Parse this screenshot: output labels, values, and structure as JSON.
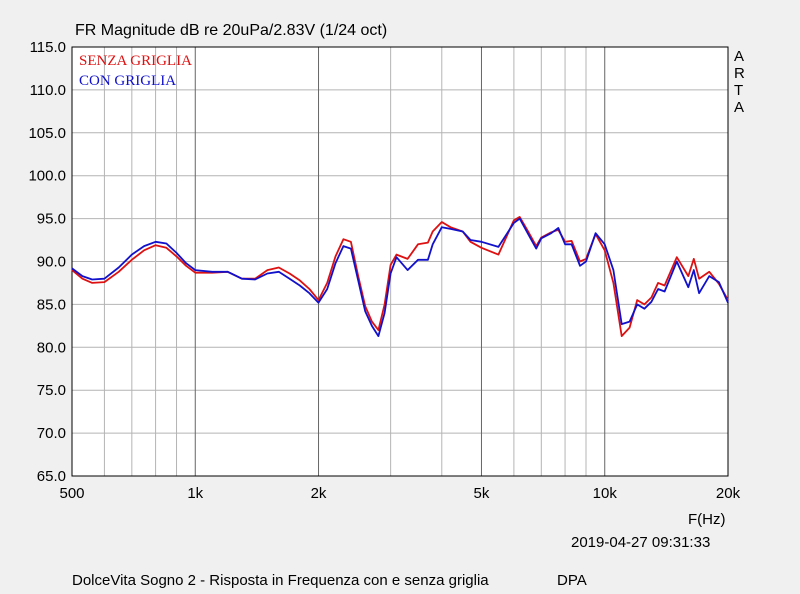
{
  "chart_data": {
    "type": "line",
    "title": "FR Magnitude dB re 20uPa/2.83V (1/24 oct)",
    "xlabel": "F(Hz)",
    "ylabel": "",
    "xscale": "log",
    "xlim": [
      500,
      20000
    ],
    "ylim": [
      65,
      115
    ],
    "y_ticks": [
      115,
      110,
      105,
      100,
      95,
      90,
      85,
      80,
      75,
      70,
      65
    ],
    "y_tick_labels": [
      "115.0",
      "110.0",
      "105.0",
      "100.0",
      "95.0",
      "90.0",
      "85.0",
      "80.0",
      "75.0",
      "70.0",
      "65.0"
    ],
    "x_ticks": [
      500,
      1000,
      2000,
      5000,
      10000,
      20000
    ],
    "x_tick_labels": [
      "500",
      "1k",
      "2k",
      "5k",
      "10k",
      "20k"
    ],
    "x_minor_grid": [
      600,
      700,
      800,
      900,
      3000,
      4000,
      6000,
      7000,
      8000,
      9000
    ],
    "grid": true,
    "legend_position": "top-left",
    "series": [
      {
        "name": "SENZA GRIGLIA",
        "color": "#dd1111",
        "points": [
          [
            500,
            89.0
          ],
          [
            530,
            88.0
          ],
          [
            560,
            87.5
          ],
          [
            600,
            87.6
          ],
          [
            650,
            88.8
          ],
          [
            700,
            90.2
          ],
          [
            750,
            91.3
          ],
          [
            800,
            91.9
          ],
          [
            850,
            91.6
          ],
          [
            900,
            90.6
          ],
          [
            950,
            89.5
          ],
          [
            1000,
            88.7
          ],
          [
            1100,
            88.7
          ],
          [
            1200,
            88.8
          ],
          [
            1300,
            88.0
          ],
          [
            1400,
            88.0
          ],
          [
            1500,
            89.0
          ],
          [
            1600,
            89.3
          ],
          [
            1700,
            88.6
          ],
          [
            1800,
            87.8
          ],
          [
            1900,
            86.8
          ],
          [
            2000,
            85.5
          ],
          [
            2100,
            87.5
          ],
          [
            2200,
            90.6
          ],
          [
            2300,
            92.6
          ],
          [
            2400,
            92.3
          ],
          [
            2500,
            88.3
          ],
          [
            2600,
            84.8
          ],
          [
            2700,
            83.0
          ],
          [
            2800,
            82.0
          ],
          [
            2900,
            85.0
          ],
          [
            3000,
            89.6
          ],
          [
            3100,
            90.8
          ],
          [
            3300,
            90.3
          ],
          [
            3500,
            92.0
          ],
          [
            3700,
            92.2
          ],
          [
            3800,
            93.5
          ],
          [
            4000,
            94.6
          ],
          [
            4200,
            94.0
          ],
          [
            4500,
            93.5
          ],
          [
            4700,
            92.3
          ],
          [
            5000,
            91.6
          ],
          [
            5500,
            90.8
          ],
          [
            6000,
            94.8
          ],
          [
            6200,
            95.2
          ],
          [
            6500,
            93.5
          ],
          [
            6800,
            91.8
          ],
          [
            7000,
            92.8
          ],
          [
            7400,
            93.4
          ],
          [
            7700,
            93.7
          ],
          [
            8000,
            92.3
          ],
          [
            8300,
            92.4
          ],
          [
            8700,
            90.0
          ],
          [
            9000,
            90.3
          ],
          [
            9500,
            93.2
          ],
          [
            10000,
            91.3
          ],
          [
            10500,
            87.5
          ],
          [
            11000,
            81.3
          ],
          [
            11500,
            82.3
          ],
          [
            12000,
            85.5
          ],
          [
            12500,
            85.0
          ],
          [
            13000,
            85.8
          ],
          [
            13500,
            87.5
          ],
          [
            14000,
            87.2
          ],
          [
            15000,
            90.5
          ],
          [
            16000,
            88.3
          ],
          [
            16500,
            90.3
          ],
          [
            17000,
            88.0
          ],
          [
            18000,
            88.8
          ],
          [
            19000,
            87.4
          ],
          [
            20000,
            85.5
          ]
        ]
      },
      {
        "name": "CON GRIGLIA",
        "color": "#1111cc",
        "points": [
          [
            500,
            89.2
          ],
          [
            530,
            88.3
          ],
          [
            560,
            87.9
          ],
          [
            600,
            88.0
          ],
          [
            650,
            89.3
          ],
          [
            700,
            90.8
          ],
          [
            750,
            91.8
          ],
          [
            800,
            92.3
          ],
          [
            850,
            92.1
          ],
          [
            900,
            91.0
          ],
          [
            950,
            89.8
          ],
          [
            1000,
            89.0
          ],
          [
            1100,
            88.8
          ],
          [
            1200,
            88.8
          ],
          [
            1300,
            88.0
          ],
          [
            1400,
            87.9
          ],
          [
            1500,
            88.6
          ],
          [
            1600,
            88.8
          ],
          [
            1700,
            88.0
          ],
          [
            1800,
            87.2
          ],
          [
            1900,
            86.3
          ],
          [
            2000,
            85.2
          ],
          [
            2100,
            86.8
          ],
          [
            2200,
            89.8
          ],
          [
            2300,
            91.8
          ],
          [
            2400,
            91.5
          ],
          [
            2500,
            87.8
          ],
          [
            2600,
            84.2
          ],
          [
            2700,
            82.5
          ],
          [
            2800,
            81.3
          ],
          [
            2900,
            84.0
          ],
          [
            3000,
            88.6
          ],
          [
            3100,
            90.5
          ],
          [
            3300,
            89.0
          ],
          [
            3500,
            90.2
          ],
          [
            3700,
            90.2
          ],
          [
            3800,
            92.0
          ],
          [
            4000,
            94.0
          ],
          [
            4200,
            93.8
          ],
          [
            4500,
            93.5
          ],
          [
            4700,
            92.5
          ],
          [
            5000,
            92.3
          ],
          [
            5500,
            91.7
          ],
          [
            6000,
            94.5
          ],
          [
            6200,
            95.0
          ],
          [
            6500,
            93.2
          ],
          [
            6800,
            91.5
          ],
          [
            7000,
            92.7
          ],
          [
            7400,
            93.3
          ],
          [
            7700,
            93.9
          ],
          [
            8000,
            92.0
          ],
          [
            8300,
            92.0
          ],
          [
            8700,
            89.5
          ],
          [
            9000,
            90.0
          ],
          [
            9500,
            93.3
          ],
          [
            10000,
            92.0
          ],
          [
            10500,
            89.0
          ],
          [
            11000,
            82.7
          ],
          [
            11500,
            83.0
          ],
          [
            12000,
            85.0
          ],
          [
            12500,
            84.5
          ],
          [
            13000,
            85.3
          ],
          [
            13500,
            86.8
          ],
          [
            14000,
            86.5
          ],
          [
            15000,
            90.0
          ],
          [
            16000,
            87.0
          ],
          [
            16500,
            89.0
          ],
          [
            17000,
            86.3
          ],
          [
            18000,
            88.3
          ],
          [
            19000,
            87.6
          ],
          [
            20000,
            85.2
          ]
        ]
      }
    ]
  },
  "header": {
    "brand": "ARTA"
  },
  "meta": {
    "x_unit_label": "F(Hz)",
    "timestamp": "2019-04-27   09:31:33",
    "footer": "DolceVita Sogno 2 - Risposta in Frequenza con e senza griglia",
    "footer_code": "DPA"
  }
}
